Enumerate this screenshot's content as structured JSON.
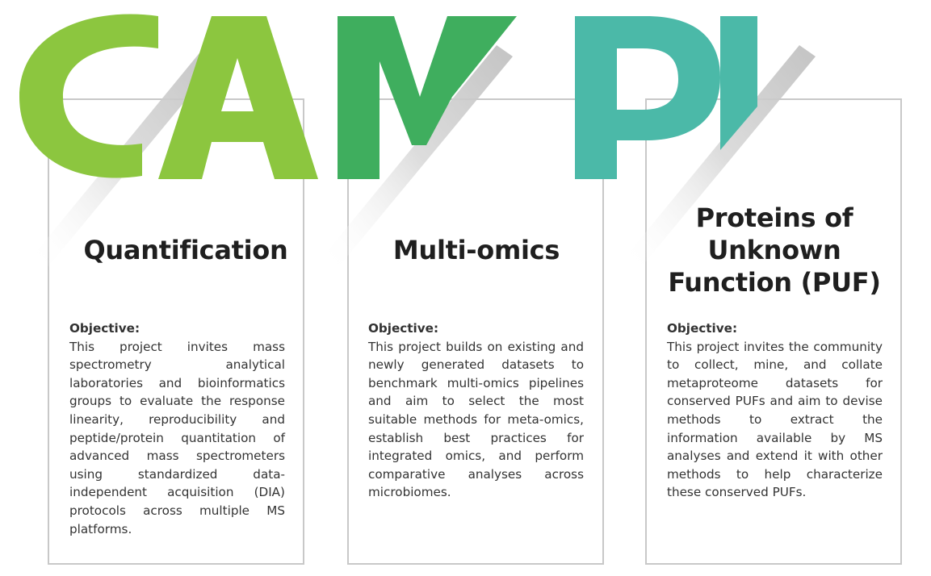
{
  "logo": {
    "letters": [
      "C",
      "A",
      "M",
      "P",
      "I"
    ],
    "colors": {
      "c": "#8cc63f",
      "a": "#8cc63f",
      "m": "#3fae5e",
      "p": "#4bb9a8",
      "i": "#4bb9a8"
    }
  },
  "cards": [
    {
      "title": "Quantification",
      "objective_label": "Objective:",
      "text": "This project invites mass spectrometry analytical laboratories and bioinformatics groups to evaluate the response linearity, reproducibility and peptide/protein quantitation of advanced mass spectrometers using standardized data-independent acquisition (DIA) protocols across multiple MS platforms."
    },
    {
      "title": "Multi-omics",
      "objective_label": "Objective:",
      "text": "This project builds on existing and newly generated datasets to benchmark multi-omics pipelines and aim to select the most suitable methods for meta-omics, establish best practices for integrated omics, and perform comparative analyses across microbiomes."
    },
    {
      "title": "Proteins of Unknown Function (PUF)",
      "objective_label": "Objective:",
      "text": "This project invites the community to collect, mine, and collate metaproteome datasets for conserved PUFs and aim to devise methods to extract the information available by MS analyses and extend it with other methods to help characterize these conserved PUFs."
    }
  ]
}
